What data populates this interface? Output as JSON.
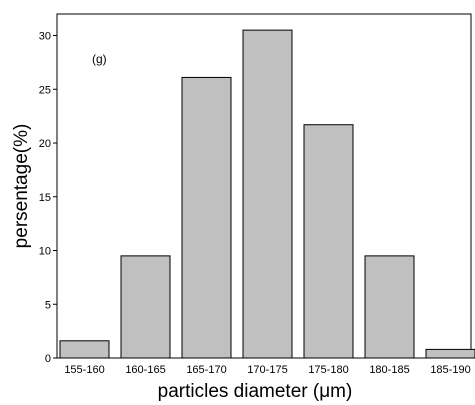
{
  "chart_data": {
    "type": "bar",
    "annotation": "(g)",
    "xlabel": "particles diameter (μm)",
    "ylabel": "persentage(%)",
    "categories": [
      "155-160",
      "160-165",
      "165-170",
      "170-175",
      "175-180",
      "180-185",
      "185-190"
    ],
    "values": [
      1.6,
      9.5,
      26.1,
      30.5,
      21.7,
      9.5,
      0.8
    ],
    "ylim": [
      0,
      32
    ],
    "yticks": [
      0,
      5,
      10,
      15,
      20,
      25,
      30
    ],
    "grid": false,
    "bar_color": "#c0c0c0",
    "bar_edge_color": "#000000"
  }
}
